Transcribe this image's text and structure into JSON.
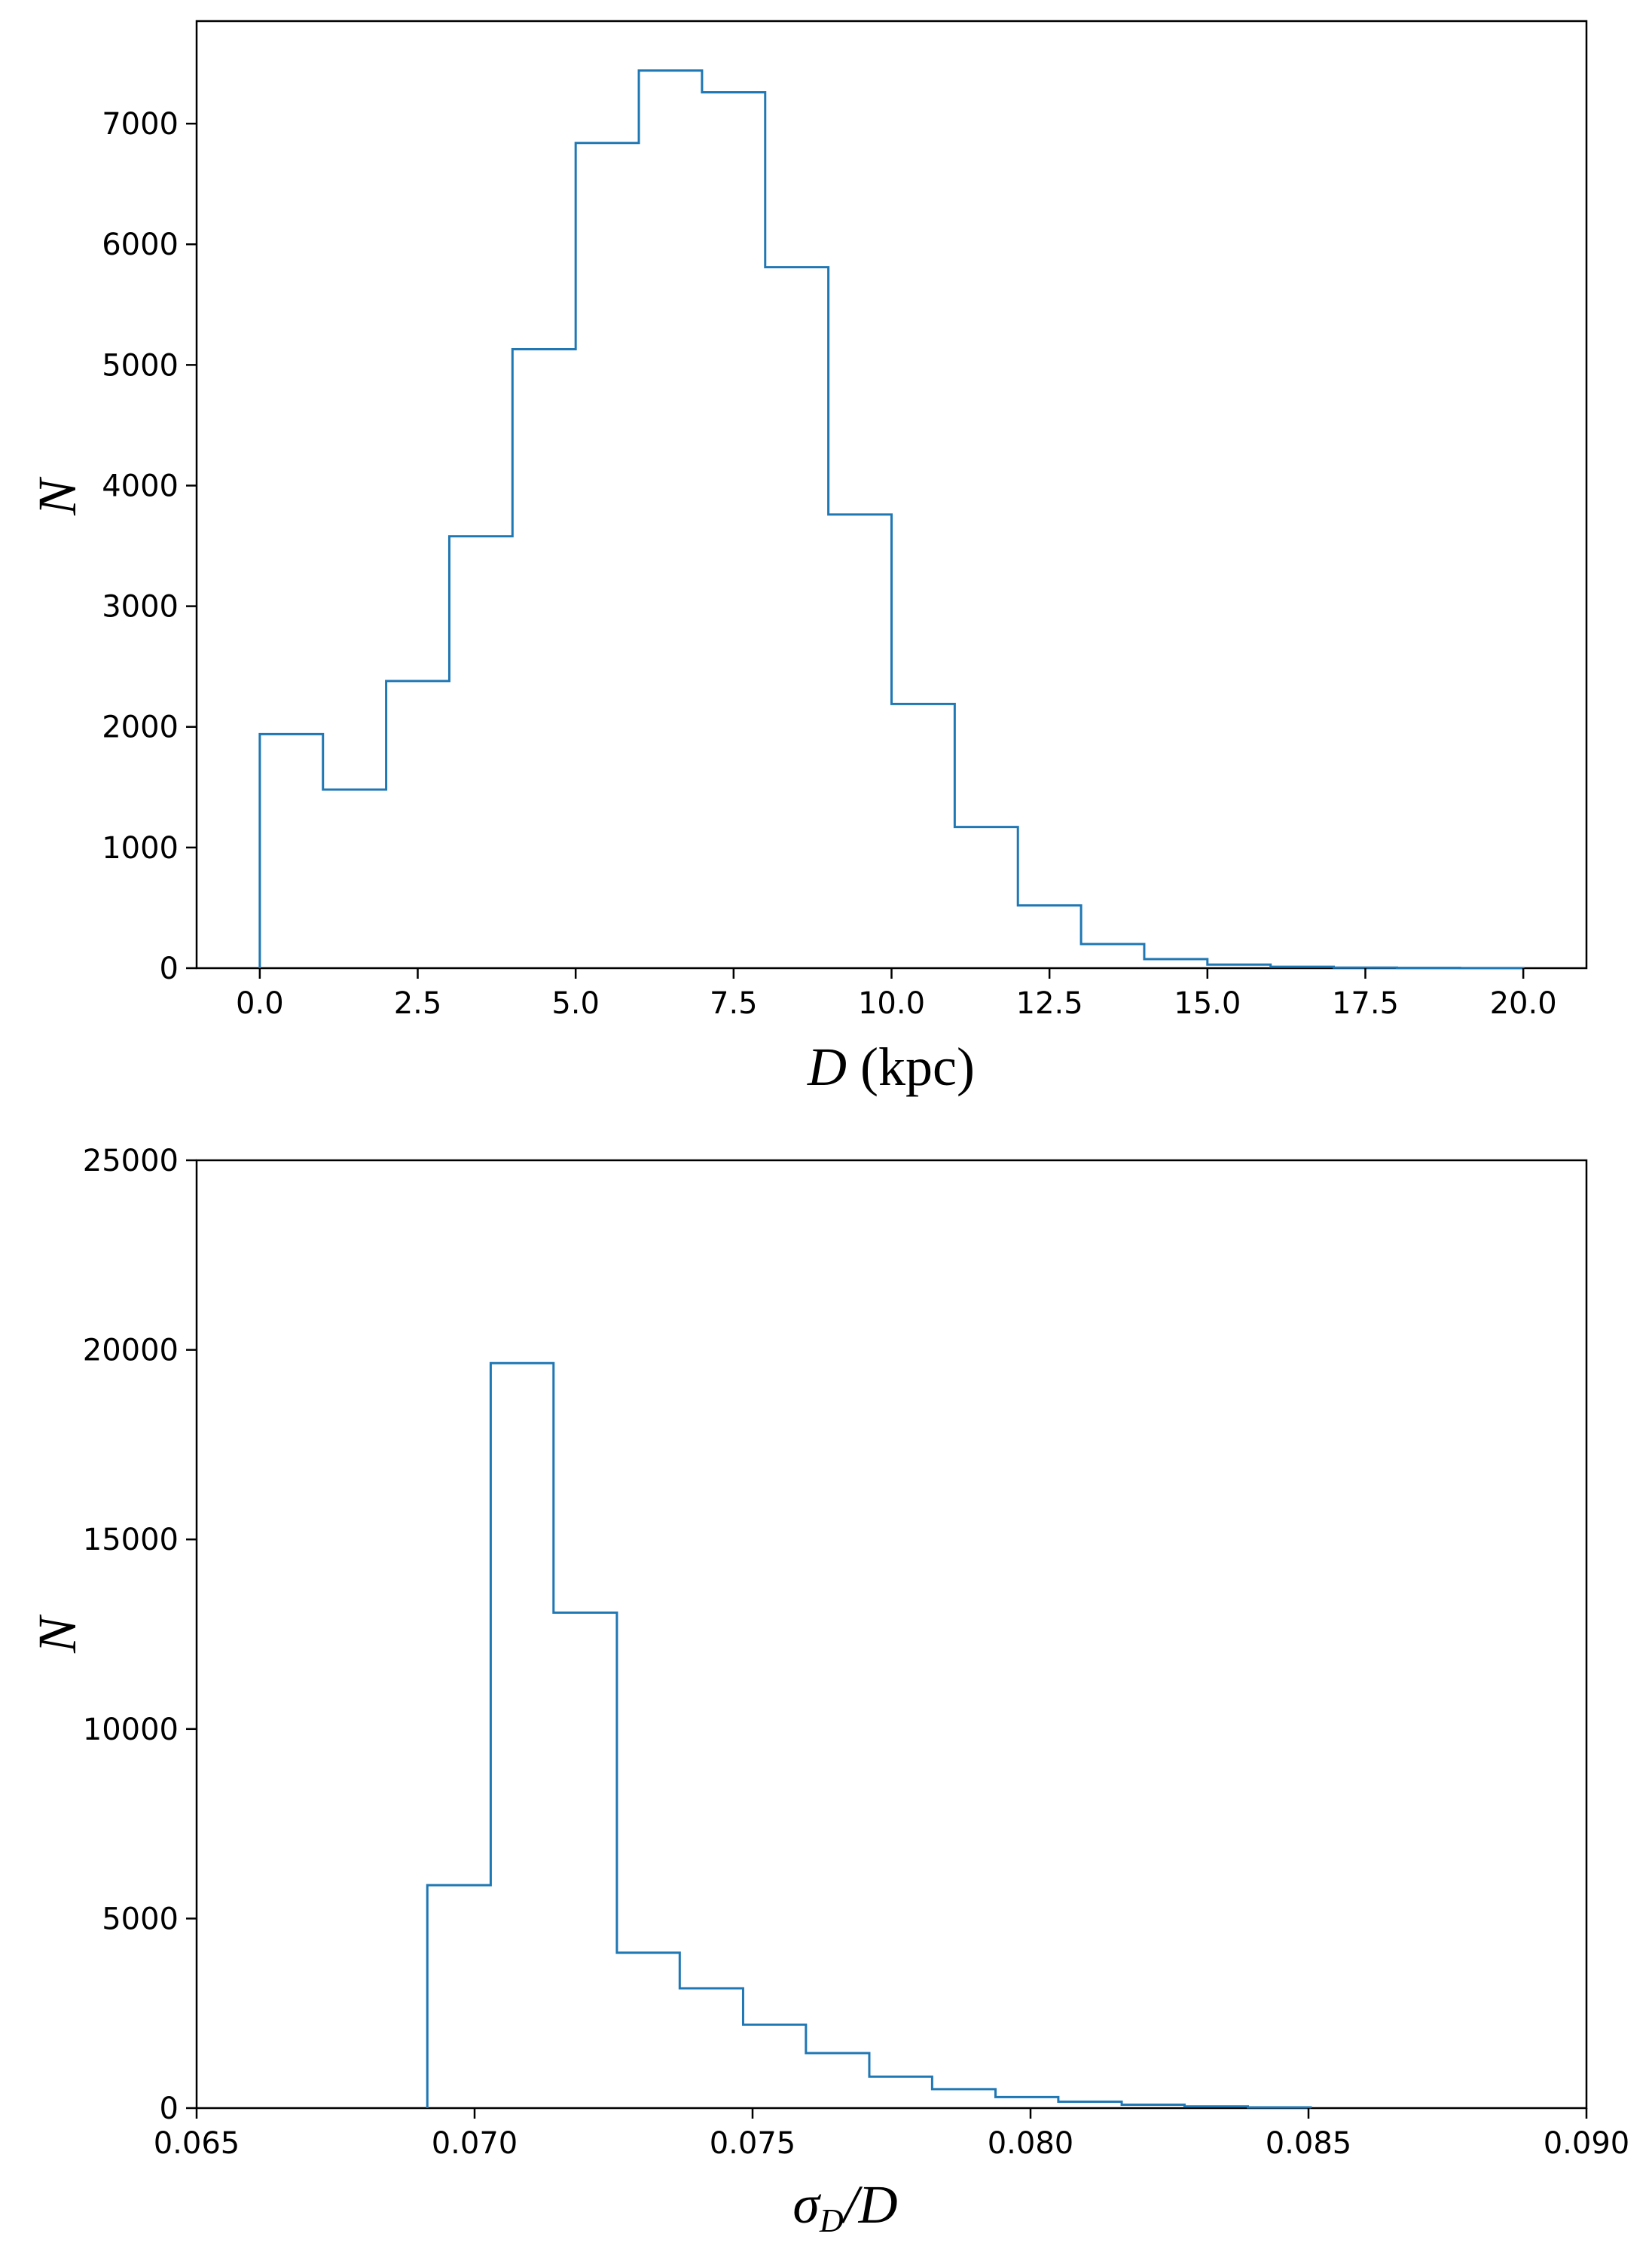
{
  "chart_data": [
    {
      "type": "histogram",
      "xlabel_main": "D",
      "xlabel_unit": " (kpc)",
      "ylabel": "N",
      "xlim": [
        -1.0,
        21.0
      ],
      "ylim": [
        0,
        7850
      ],
      "xticks": [
        0.0,
        2.5,
        5.0,
        7.5,
        10.0,
        12.5,
        15.0,
        17.5,
        20.0
      ],
      "xtick_labels": [
        "0.0",
        "2.5",
        "5.0",
        "7.5",
        "10.0",
        "12.5",
        "15.0",
        "17.5",
        "20.0"
      ],
      "yticks": [
        0,
        1000,
        2000,
        3000,
        4000,
        5000,
        6000,
        7000
      ],
      "ytick_labels": [
        "0",
        "1000",
        "2000",
        "3000",
        "4000",
        "5000",
        "6000",
        "7000"
      ],
      "bin_edges": [
        0.0,
        1.0,
        2.0,
        3.0,
        4.0,
        5.0,
        6.0,
        7.0,
        8.0,
        9.0,
        10.0,
        11.0,
        12.0,
        13.0,
        14.0,
        15.0,
        16.0,
        17.0,
        18.0,
        19.0,
        20.0
      ],
      "counts": [
        1940,
        1480,
        2380,
        3580,
        5130,
        6840,
        7440,
        7260,
        5810,
        3760,
        2190,
        1170,
        520,
        200,
        75,
        30,
        12,
        5,
        2,
        1
      ],
      "grid": false,
      "color": "#1f77b4"
    },
    {
      "type": "histogram",
      "xlabel_sigma": "σ",
      "xlabel_sub": "D",
      "xlabel_rest": "/D",
      "ylabel": "N",
      "xlim": [
        0.065,
        0.09
      ],
      "ylim": [
        0,
        25000
      ],
      "xticks": [
        0.065,
        0.07,
        0.075,
        0.08,
        0.085,
        0.09
      ],
      "xtick_labels": [
        "0.065",
        "0.070",
        "0.075",
        "0.080",
        "0.085",
        "0.090"
      ],
      "yticks": [
        0,
        5000,
        10000,
        15000,
        20000,
        25000
      ],
      "ytick_labels": [
        "0",
        "5000",
        "10000",
        "15000",
        "20000",
        "25000"
      ],
      "bin_edges": [
        0.06915,
        0.07029,
        0.07142,
        0.07256,
        0.07369,
        0.07483,
        0.07596,
        0.0771,
        0.07823,
        0.07937,
        0.0805,
        0.08164,
        0.08277,
        0.08391,
        0.08504
      ],
      "counts": [
        5880,
        19650,
        13070,
        4100,
        3160,
        2200,
        1450,
        830,
        500,
        290,
        170,
        90,
        45,
        20
      ],
      "grid": false,
      "color": "#1f77b4"
    }
  ]
}
